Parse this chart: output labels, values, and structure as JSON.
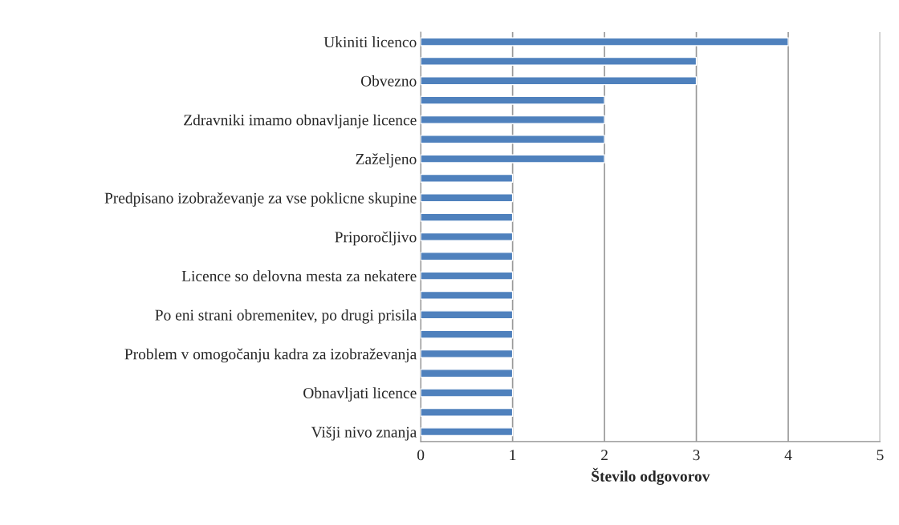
{
  "chart_data": {
    "type": "bar",
    "orientation": "horizontal",
    "xlabel": "Število odgovorov",
    "categories": [
      "Ukiniti licenco",
      null,
      "Obvezno",
      null,
      "Zdravniki imamo obnavljanje licence",
      null,
      "Zaželjeno",
      null,
      "Predpisano izobraževanje za vse poklicne skupine",
      null,
      "Priporočljivo",
      null,
      "Licence so delovna mesta za nekatere",
      null,
      "Po eni strani obremenitev, po drugi prisila",
      null,
      "Problem v omogočanju kadra za izobraževanja",
      null,
      "Obnavljati licence",
      null,
      "Višji nivo znanja"
    ],
    "values": [
      4,
      3,
      3,
      2,
      2,
      2,
      2,
      1,
      1,
      1,
      1,
      1,
      1,
      1,
      1,
      1,
      1,
      1,
      1,
      1,
      1
    ],
    "color": "#4f81bd",
    "xlim": [
      0,
      5
    ],
    "xticks": [
      0,
      1,
      2,
      3,
      4,
      5
    ],
    "grid": "x"
  }
}
